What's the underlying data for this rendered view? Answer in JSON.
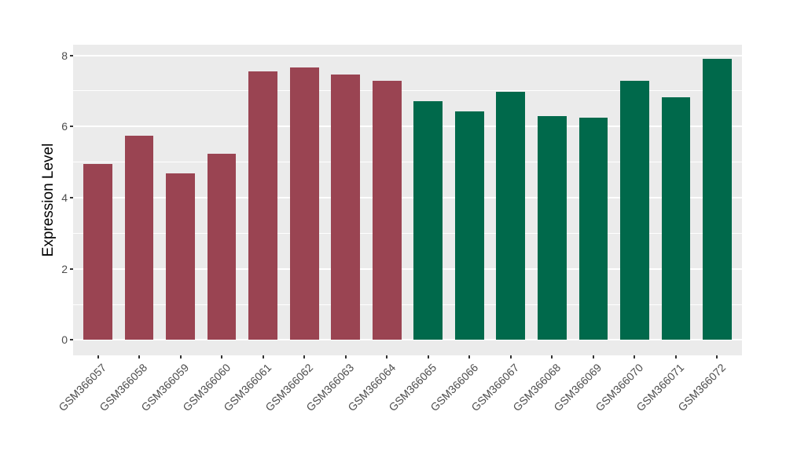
{
  "chart_data": {
    "type": "bar",
    "title": "",
    "xlabel": "",
    "ylabel": "Expression Level",
    "categories": [
      "GSM366057",
      "GSM366058",
      "GSM366059",
      "GSM366060",
      "GSM366061",
      "GSM366062",
      "GSM366063",
      "GSM366064",
      "GSM366065",
      "GSM366066",
      "GSM366067",
      "GSM366068",
      "GSM366069",
      "GSM366070",
      "GSM366071",
      "GSM366072"
    ],
    "values": [
      4.94,
      5.75,
      4.69,
      5.24,
      7.56,
      7.66,
      7.47,
      7.28,
      6.72,
      6.43,
      6.97,
      6.29,
      6.26,
      7.28,
      6.82,
      7.9
    ],
    "bar_colors": [
      "#9A4452",
      "#9A4452",
      "#9A4452",
      "#9A4452",
      "#9A4452",
      "#9A4452",
      "#9A4452",
      "#9A4452",
      "#00694B",
      "#00694B",
      "#00694B",
      "#00694B",
      "#00694B",
      "#00694B",
      "#00694B",
      "#00694B"
    ],
    "yticks": [
      0,
      2,
      4,
      6,
      8
    ],
    "y_minor_gridlines": [
      1,
      3,
      5,
      7
    ],
    "ylim": [
      0,
      8.3
    ],
    "grid": true,
    "legend_position": "none",
    "x_tick_label_rotation": 45,
    "colors": {
      "group_left": "#9A4452",
      "group_right": "#00694B",
      "panel_background": "#EBEBEB",
      "grid": "#FFFFFF",
      "axis_text": "#4D4D4D",
      "axis_title": "#000000",
      "tick_marks": "#333333"
    }
  }
}
